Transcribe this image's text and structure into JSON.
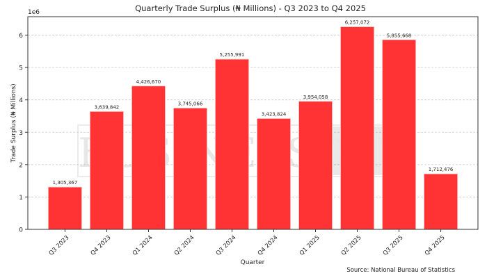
{
  "chart_data": {
    "type": "bar",
    "title": "Quarterly Trade Surplus (₦ Millions) - Q3 2023 to Q4 2025",
    "xlabel": "Quarter",
    "ylabel": "Trade Surplus (₦ Millions)",
    "y_offset_label": "1e6",
    "categories": [
      "Q3 2023",
      "Q4 2023",
      "Q1 2024",
      "Q2 2024",
      "Q3 2024",
      "Q4 2024",
      "Q1 2025",
      "Q2 2025",
      "Q3 2025",
      "Q4 2025"
    ],
    "values": [
      1305367,
      3639842,
      4426670,
      3745066,
      5255991,
      3423824,
      3954058,
      6257072,
      5855668,
      1712476
    ],
    "data_labels": [
      "1,305,367",
      "3,639,842",
      "4,426,670",
      "3,745,066",
      "5,255,991",
      "3,423,824",
      "3,954,058",
      "6,257,072",
      "5,855,668",
      "1,712,476"
    ],
    "yticks": [
      0,
      1,
      2,
      3,
      4,
      5,
      6
    ],
    "ylim": [
      0,
      6570000
    ],
    "grid": "y-dashed",
    "bar_color": "#ff3333",
    "source": "Source: National Bureau of Statistics",
    "watermark": "BUSINESSDAY"
  }
}
